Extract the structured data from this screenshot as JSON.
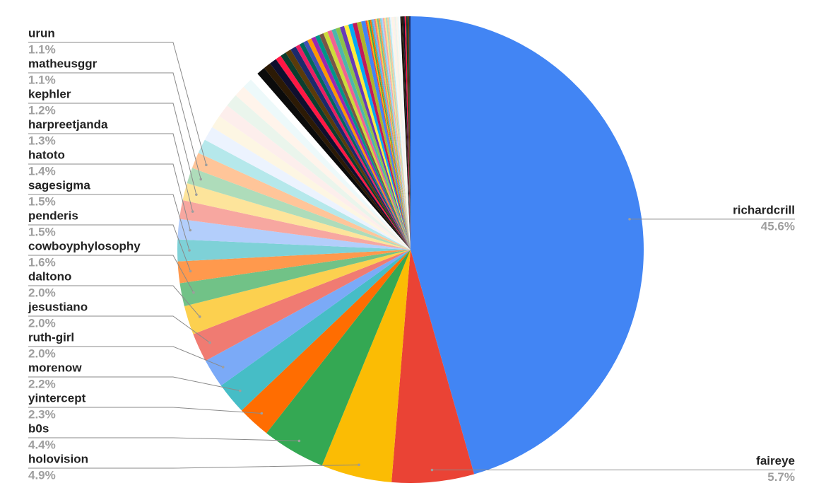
{
  "chart_data": {
    "type": "pie",
    "categories": [
      "richardcrill",
      "faireye",
      "holovision",
      "b0s",
      "yintercept",
      "morenow",
      "ruth-girl",
      "jesustiano",
      "daltono",
      "cowboyphylosophy",
      "penderis",
      "sagesigma",
      "hatoto",
      "harpreetjanda",
      "kephler",
      "matheusggr",
      "urun",
      null,
      null,
      null,
      null,
      null,
      null,
      null,
      null,
      null,
      null,
      null,
      null,
      null,
      null,
      null,
      null,
      null,
      null,
      null,
      null,
      null,
      null,
      null,
      null,
      null,
      null,
      null,
      null,
      null,
      null,
      null,
      null,
      null,
      null,
      null,
      null,
      null,
      null,
      null,
      null,
      null,
      null,
      null,
      null,
      null,
      null,
      null,
      null,
      null,
      null,
      null,
      null,
      null,
      null,
      null,
      null,
      null,
      null,
      null,
      null,
      null,
      null,
      null
    ],
    "values": [
      45.6,
      5.7,
      4.9,
      4.4,
      2.3,
      2.2,
      2.0,
      2.0,
      2.0,
      1.6,
      1.5,
      1.5,
      1.4,
      1.3,
      1.2,
      1.1,
      1.1,
      1.0,
      1.0,
      0.9,
      0.9,
      0.9,
      0.8,
      0.7,
      0.6,
      0.6,
      0.5,
      0.5,
      0.4,
      0.4,
      0.4,
      0.4,
      0.3,
      0.3,
      0.3,
      0.3,
      0.3,
      0.3,
      0.3,
      0.3,
      0.3,
      0.3,
      0.3,
      0.3,
      0.3,
      0.3,
      0.3,
      0.3,
      0.3,
      0.1,
      0.1,
      0.1,
      0.1,
      0.1,
      0.1,
      0.1,
      0.1,
      0.1,
      0.1,
      0.1,
      0.1,
      0.1,
      0.1,
      0.1,
      0.1,
      0.1,
      0.1,
      0.1,
      0.1,
      0.1,
      0.1,
      0.1,
      0.1,
      0.1,
      0.1,
      0.1,
      0.1,
      0.1,
      0.1,
      0.1
    ],
    "value_labels": [
      "45.6%",
      "5.7%",
      "4.9%",
      "4.4%",
      "2.3%",
      "2.2%",
      "2.0%",
      "2.0%",
      "2.0%",
      "1.6%",
      "1.5%",
      "1.5%",
      "1.4%",
      "1.3%",
      "1.2%",
      "1.1%",
      "1.1%",
      null,
      null,
      null,
      null,
      null,
      null,
      null,
      null,
      null,
      null,
      null,
      null,
      null,
      null,
      null,
      null,
      null,
      null,
      null,
      null,
      null,
      null,
      null,
      null,
      null,
      null,
      null,
      null,
      null,
      null,
      null,
      null,
      null,
      null,
      null,
      null,
      null,
      null,
      null,
      null,
      null,
      null,
      null,
      null,
      null,
      null,
      null,
      null,
      null,
      null,
      null,
      null,
      null,
      null,
      null,
      null,
      null,
      null,
      null,
      null,
      null,
      null,
      null
    ],
    "colors": [
      "#4285f4",
      "#ea4335",
      "#fbbc04",
      "#34a853",
      "#ff6d01",
      "#46bdc6",
      "#7baaf7",
      "#f07b72",
      "#fcd04f",
      "#71c287",
      "#ff994d",
      "#7ed1d7",
      "#b3cefb",
      "#f7a7a0",
      "#fde49b",
      "#aedcba",
      "#ffc599",
      "#b5e8eb",
      "#ecf3fe",
      "#fdf6e3",
      "#fdeeec",
      "#eaf5ec",
      "#fff4eb",
      "#edf9fa",
      "#ffffff",
      "#0b0b0b",
      "#2c1a05",
      "#0f0f2e",
      "#ff1744",
      "#0b3d2e",
      "#5a3b0a",
      "#1b2a6b",
      "#e91e63",
      "#00695c",
      "#3f51b5",
      "#ff9800",
      "#9c27b0",
      "#009688",
      "#795548",
      "#cddc39",
      "#f06292",
      "#4db6ac",
      "#8bc34a",
      "#673ab7",
      "#ffeb3b",
      "#03a9f4",
      "#c2185b",
      "#afb42b"
    ]
  }
}
